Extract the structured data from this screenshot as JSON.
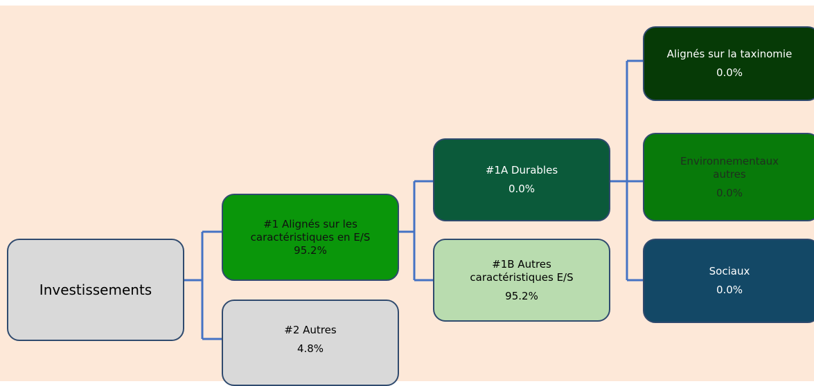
{
  "nodes": [
    {
      "label": "Investissements"
    },
    {
      "label": "#1 Alignés sur les caractéristiques en E/S",
      "value": "95.2%"
    },
    {
      "label": "#2 Autres",
      "value": "4.8%"
    },
    {
      "label": "#1A Durables",
      "value": "0.0%"
    },
    {
      "label": "#1B Autres caractéristiques E/S",
      "value": "95.2%"
    },
    {
      "label": "Alignés sur la taxinomie",
      "value": "0.0%"
    },
    {
      "label": "Environnementaux autres",
      "value": "0.0%"
    },
    {
      "label": "Sociaux",
      "value": "0.0%"
    }
  ]
}
